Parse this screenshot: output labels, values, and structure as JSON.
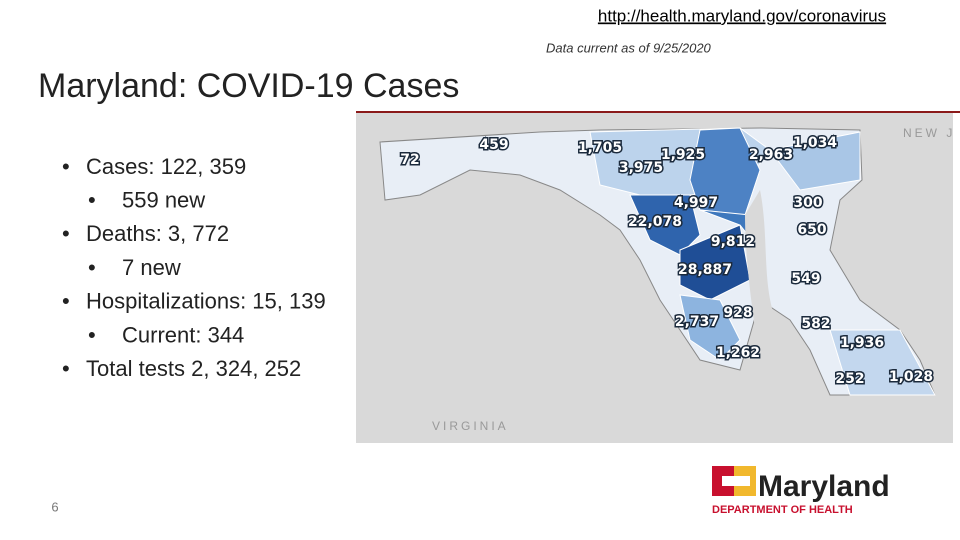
{
  "header": {
    "url": "http://health.maryland.gov/coronavirus",
    "note": "Data current as of 9/25/2020"
  },
  "title": "Maryland: COVID-19 Cases",
  "bullets": [
    {
      "text": "Cases: 122, 359",
      "sub": [
        "559 new"
      ]
    },
    {
      "text": "Deaths: 3, 772",
      "sub": [
        "7 new"
      ]
    },
    {
      "text": "Hospitalizations: 15, 139",
      "sub": [
        "Current: 344"
      ]
    },
    {
      "text": "Total tests 2, 324, 252",
      "sub": []
    }
  ],
  "map": {
    "region_labels": [
      "NEW J",
      "VIRGINIA"
    ],
    "counties": [
      "72",
      "459",
      "1,705",
      "1,925",
      "3,975",
      "2,963",
      "1,034",
      "4,997",
      "300",
      "22,078",
      "9,812",
      "650",
      "28,887",
      "549",
      "2,737",
      "928",
      "582",
      "1,936",
      "1,262",
      "252",
      "1,028"
    ]
  },
  "logo": {
    "name": "Maryland",
    "subtitle": "DEPARTMENT OF HEALTH"
  },
  "page_number": "6"
}
